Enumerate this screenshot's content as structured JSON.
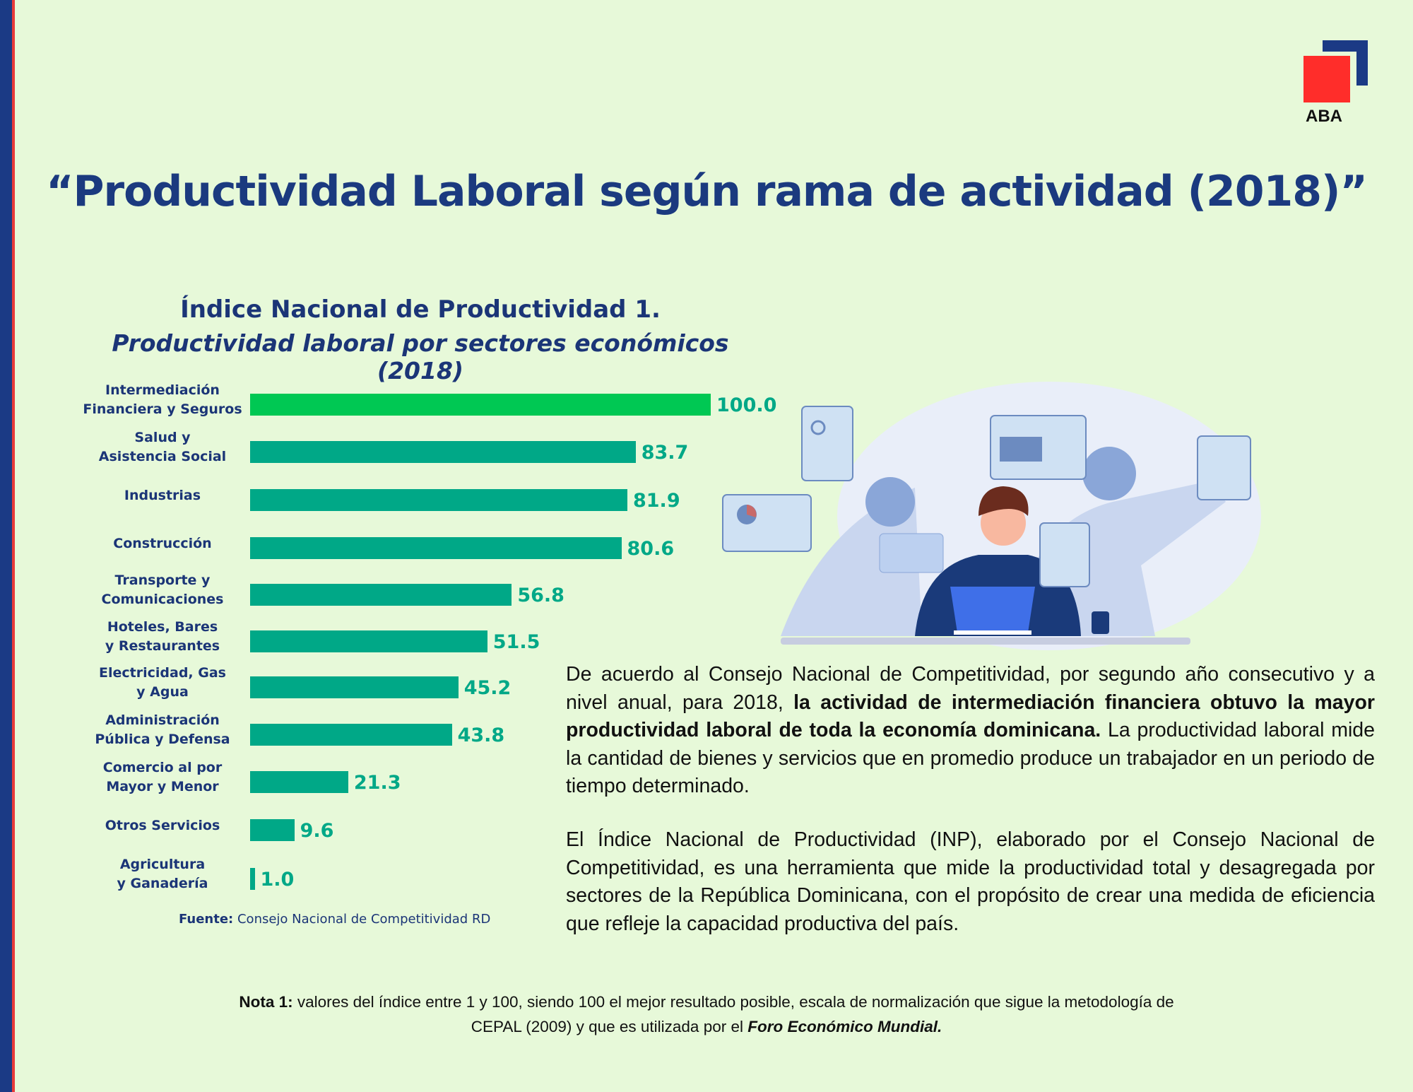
{
  "brand": {
    "logo_text": "ABA",
    "colors": {
      "navy": "#1b3a85",
      "red": "#ff2d2a"
    }
  },
  "title": "“Productividad Laboral según rama de actividad (2018)”",
  "chart_data": {
    "type": "bar",
    "orientation": "horizontal",
    "title": "Índice Nacional de Productividad 1.",
    "subtitle": "Productividad laboral por sectores económicos (2018)",
    "categories": [
      [
        "Intermediación",
        "Financiera y Seguros"
      ],
      [
        "Salud y",
        "Asistencia Social"
      ],
      [
        "Industrias"
      ],
      [
        "Construcción"
      ],
      [
        "Transporte y",
        "Comunicaciones"
      ],
      [
        "Hoteles, Bares",
        "y Restaurantes"
      ],
      [
        "Electricidad, Gas",
        "y Agua"
      ],
      [
        "Administración",
        "Pública y  Defensa"
      ],
      [
        "Comercio al por",
        "Mayor y Menor"
      ],
      [
        "Otros Servicios"
      ],
      [
        "Agricultura",
        "y Ganadería"
      ]
    ],
    "values": [
      100.0,
      83.7,
      81.9,
      80.6,
      56.8,
      51.5,
      45.2,
      43.8,
      21.3,
      9.6,
      1.0
    ],
    "value_labels": [
      "100.0",
      "83.7",
      "81.9",
      "80.6",
      "56.8",
      "51.5",
      "45.2",
      "43.8",
      "21.3",
      "9.6",
      "1.0"
    ],
    "xlim": [
      0,
      100
    ],
    "grid": false,
    "colors": {
      "highlight": "#00c853",
      "default": "#00a887"
    },
    "source_label": "Fuente:",
    "source": "Consejo Nacional de Competitividad RD"
  },
  "paragraphs": {
    "p1_a": "De acuerdo al Consejo Nacional de Competitividad, por segundo año consecutivo y a nivel anual, para 2018, ",
    "p1_bold": "la actividad de intermediación financiera obtuvo la mayor productividad laboral de toda la economía dominicana.",
    "p1_b": " La productividad laboral mide la cantidad de bienes y servicios que en promedio produce un trabajador en un periodo de tiempo determinado.",
    "p2": "El Índice Nacional de Productividad (INP), elaborado por el Consejo Nacional de Competitividad, es una herramienta que mide la productividad total y desagregada por sectores de la República Dominicana, con el propósito de crear una medida de eficiencia que refleje la capacidad productiva del país."
  },
  "note": {
    "label": "Nota 1:",
    "text_a": " valores del índice entre 1 y 100, siendo 100 el mejor resultado posible, escala de normalización que sigue la metodología de CEPAL (2009) y que es utilizada por el ",
    "text_bold_italic": "Foro Económico Mundial."
  }
}
